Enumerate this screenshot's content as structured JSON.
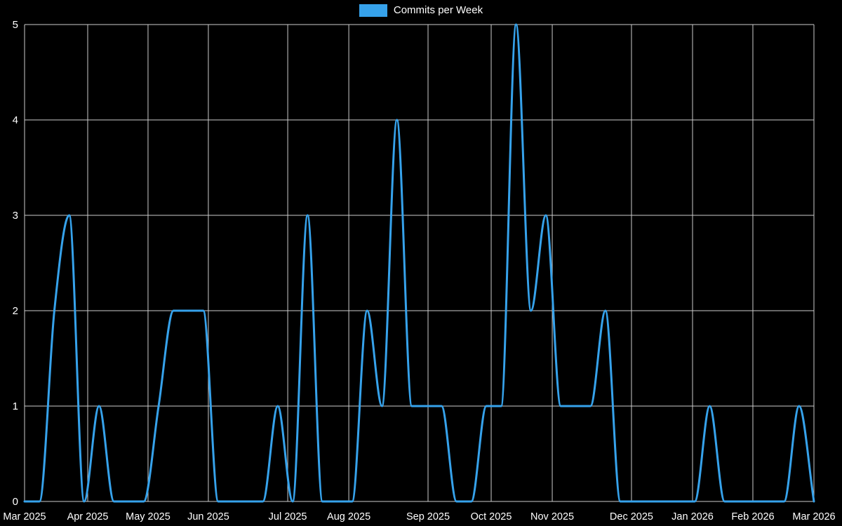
{
  "legend": {
    "label": "Commits per Week"
  },
  "chart_data": {
    "type": "line",
    "title": "Commits per Week",
    "series": [
      {
        "name": "Commits per Week",
        "values": [
          0,
          0,
          2,
          3,
          0,
          1,
          0,
          0,
          0,
          1,
          2,
          2,
          2,
          0,
          0,
          0,
          0,
          1,
          0,
          3,
          0,
          0,
          0,
          2,
          1,
          4,
          1,
          1,
          1,
          0,
          0,
          1,
          1,
          5,
          2,
          3,
          1,
          1,
          1,
          2,
          0,
          0,
          0,
          0,
          0,
          0,
          1,
          0,
          0,
          0,
          0,
          0,
          1,
          0
        ]
      }
    ],
    "x_unit": "week",
    "x_tick_labels": [
      "Mar 2025",
      "Apr 2025",
      "May 2025",
      "Jun 2025",
      "Jul 2025",
      "Aug 2025",
      "Sep 2025",
      "Oct 2025",
      "Nov 2025",
      "Dec 2025",
      "Jan 2026",
      "Feb 2026",
      "Mar 2026"
    ],
    "x_tick_weeks": [
      0,
      4.24,
      8.29,
      12.34,
      17.67,
      21.77,
      27.09,
      31.33,
      35.43,
      40.75,
      44.85,
      48.9,
      53
    ],
    "y_ticks": [
      0,
      1,
      2,
      3,
      4,
      5
    ],
    "ylim": [
      0,
      5
    ],
    "grid": true,
    "legend_position": "top",
    "line_color": "#36a2eb",
    "grid_color": "#cccccc",
    "background_color": "#000000",
    "text_color": "#ffffff"
  }
}
